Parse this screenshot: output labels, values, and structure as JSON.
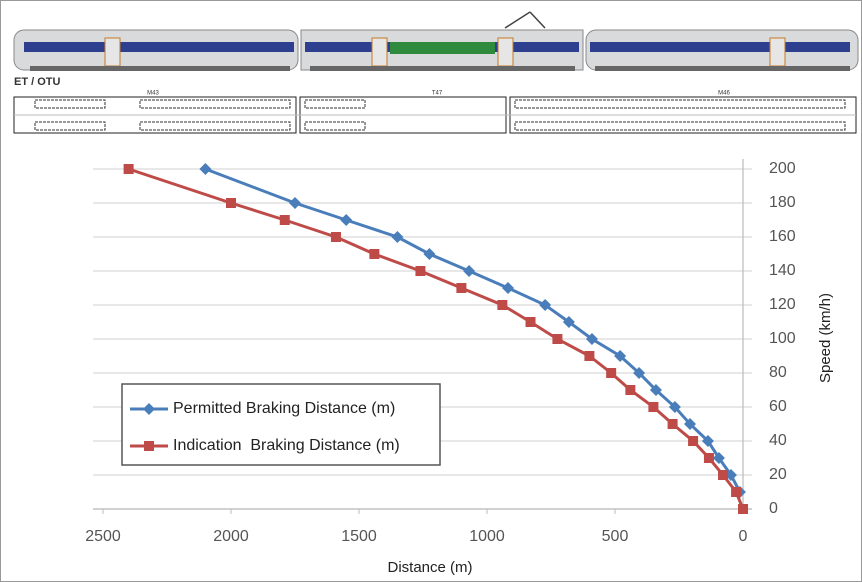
{
  "header": {
    "train_label": "ET / OTU",
    "car_labels": [
      "M43",
      "T47",
      "M46"
    ]
  },
  "chart_data": {
    "type": "line",
    "x_label": "Distance (m)",
    "y_label": "Speed (km/h)",
    "xlim": [
      2500,
      0
    ],
    "xticks": [
      2500,
      2000,
      1500,
      1000,
      500,
      0
    ],
    "ylim": [
      0,
      200
    ],
    "yticks": [
      0,
      20,
      40,
      60,
      80,
      100,
      120,
      140,
      160,
      180,
      200
    ],
    "grid": true,
    "y_axis_side": "right",
    "legend": "lower left",
    "series": [
      {
        "name": "Permitted Braking Distance (m)",
        "color": "#4a7ebb",
        "marker": "diamond",
        "x": [
          2100,
          1750,
          1550,
          1350,
          1225,
          1070,
          918,
          773,
          680,
          590,
          480,
          406,
          340,
          266,
          207,
          137,
          94,
          47,
          12
        ],
        "values": [
          200,
          180,
          170,
          160,
          150,
          140,
          130,
          120,
          110,
          100,
          90,
          80,
          70,
          60,
          50,
          40,
          30,
          20,
          10
        ]
      },
      {
        "name": "Indication  Braking Distance (m)",
        "color": "#be4b48",
        "marker": "square",
        "x": [
          2400,
          2000,
          1790,
          1590,
          1440,
          1260,
          1100,
          940,
          830,
          725,
          600,
          515,
          440,
          350,
          275,
          195,
          133,
          78,
          27,
          0
        ],
        "values": [
          200,
          180,
          170,
          160,
          150,
          140,
          130,
          120,
          110,
          100,
          90,
          80,
          70,
          60,
          50,
          40,
          30,
          20,
          10,
          0
        ]
      }
    ]
  }
}
